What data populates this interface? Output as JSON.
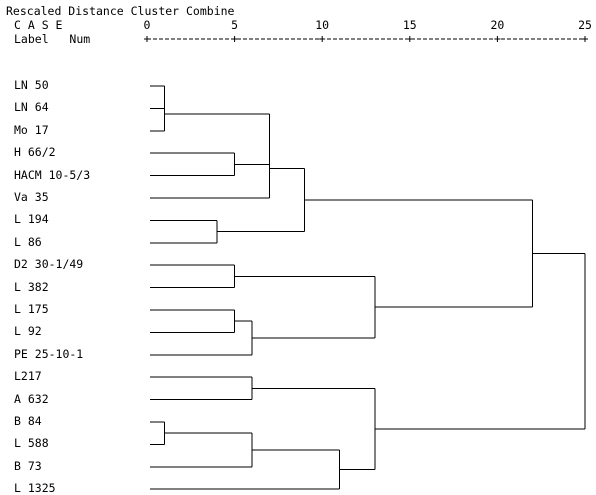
{
  "header": {
    "title": "Rescaled Distance Cluster Combine",
    "case_label": "C A S E",
    "label_label": "Label",
    "num_label": "Num"
  },
  "scale": {
    "ticks": [
      "0",
      "5",
      "10",
      "15",
      "20",
      "25"
    ]
  },
  "leaves": [
    "LN 50",
    "LN 64",
    "Mo 17",
    "H 66/2",
    "HACM 10-5/3",
    "Va 35",
    "L 194",
    "L 86",
    "D2 30-1/49",
    "L 382",
    "L 175",
    "L 92",
    "PE 25-10-1",
    "L217",
    "A 632",
    "B 84",
    "L 588",
    "B 73",
    "L 1325"
  ],
  "merges": [
    {
      "a": "leaf:0",
      "b": "leaf:1",
      "d": 1.0
    },
    {
      "a": "m:0",
      "b": "leaf:2",
      "d": 1.0
    },
    {
      "a": "leaf:3",
      "b": "leaf:4",
      "d": 5.0
    },
    {
      "a": "m:1",
      "b": "m:2",
      "d": 7.0
    },
    {
      "a": "m:3",
      "b": "leaf:5",
      "d": 7.0
    },
    {
      "a": "leaf:6",
      "b": "leaf:7",
      "d": 4.0
    },
    {
      "a": "m:4",
      "b": "m:5",
      "d": 9.0
    },
    {
      "a": "leaf:8",
      "b": "leaf:9",
      "d": 5.0
    },
    {
      "a": "leaf:10",
      "b": "leaf:11",
      "d": 5.0
    },
    {
      "a": "m:8",
      "b": "leaf:12",
      "d": 6.0
    },
    {
      "a": "m:7",
      "b": "m:9",
      "d": 13.0
    },
    {
      "a": "m:6",
      "b": "m:10",
      "d": 22.0
    },
    {
      "a": "leaf:13",
      "b": "leaf:14",
      "d": 6.0
    },
    {
      "a": "leaf:15",
      "b": "leaf:16",
      "d": 1.0
    },
    {
      "a": "m:13",
      "b": "leaf:17",
      "d": 6.0
    },
    {
      "a": "m:14",
      "b": "leaf:18",
      "d": 11.0
    },
    {
      "a": "m:12",
      "b": "m:15",
      "d": 13.0
    },
    {
      "a": "m:11",
      "b": "m:16",
      "d": 25.0
    }
  ]
}
